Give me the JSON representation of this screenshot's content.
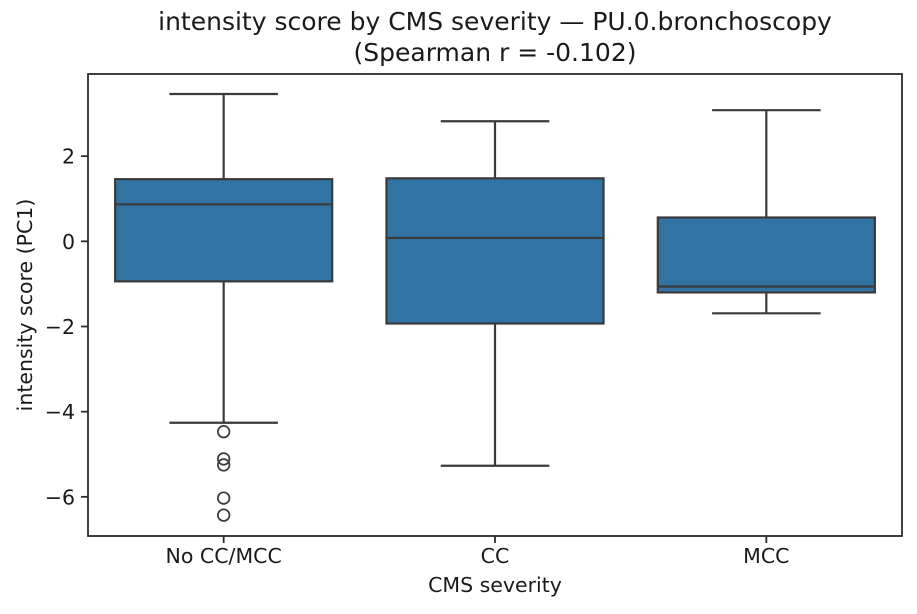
{
  "chart_data": {
    "type": "boxplot",
    "title_line1": "intensity score by CMS severity — PU.0.bronchoscopy",
    "title_line2": "(Spearman r = -0.102)",
    "xlabel": "CMS severity",
    "ylabel": "intensity score (PC1)",
    "categories": [
      "No CC/MCC",
      "CC",
      "MCC"
    ],
    "ylim": [
      -6.92,
      3.93
    ],
    "yticks": [
      2,
      0,
      -2,
      -4,
      -6
    ],
    "ytick_labels": [
      "2",
      "0",
      "−2",
      "−4",
      "−6"
    ],
    "grid": false,
    "legend": null,
    "series": [
      {
        "name": "No CC/MCC",
        "whisker_low": -4.26,
        "q1": -0.94,
        "median": 0.87,
        "q3": 1.46,
        "whisker_high": 3.46,
        "outliers": [
          -4.47,
          -5.11,
          -5.25,
          -6.03,
          -6.43
        ]
      },
      {
        "name": "CC",
        "whisker_low": -5.27,
        "q1": -1.93,
        "median": 0.08,
        "q3": 1.48,
        "whisker_high": 2.82,
        "outliers": []
      },
      {
        "name": "MCC",
        "whisker_low": -1.69,
        "q1": -1.2,
        "median": -1.06,
        "q3": 0.56,
        "whisker_high": 3.08,
        "outliers": []
      }
    ],
    "colors": {
      "box_fill": "#3173A2",
      "box_edge": "#3a3a3a",
      "whisker": "#3a3a3a",
      "median": "#3a3a3a",
      "outlier": "#3a3a3a",
      "spine": "#2b2b2b",
      "text": "#1a1a1a",
      "background": "#ffffff"
    }
  }
}
